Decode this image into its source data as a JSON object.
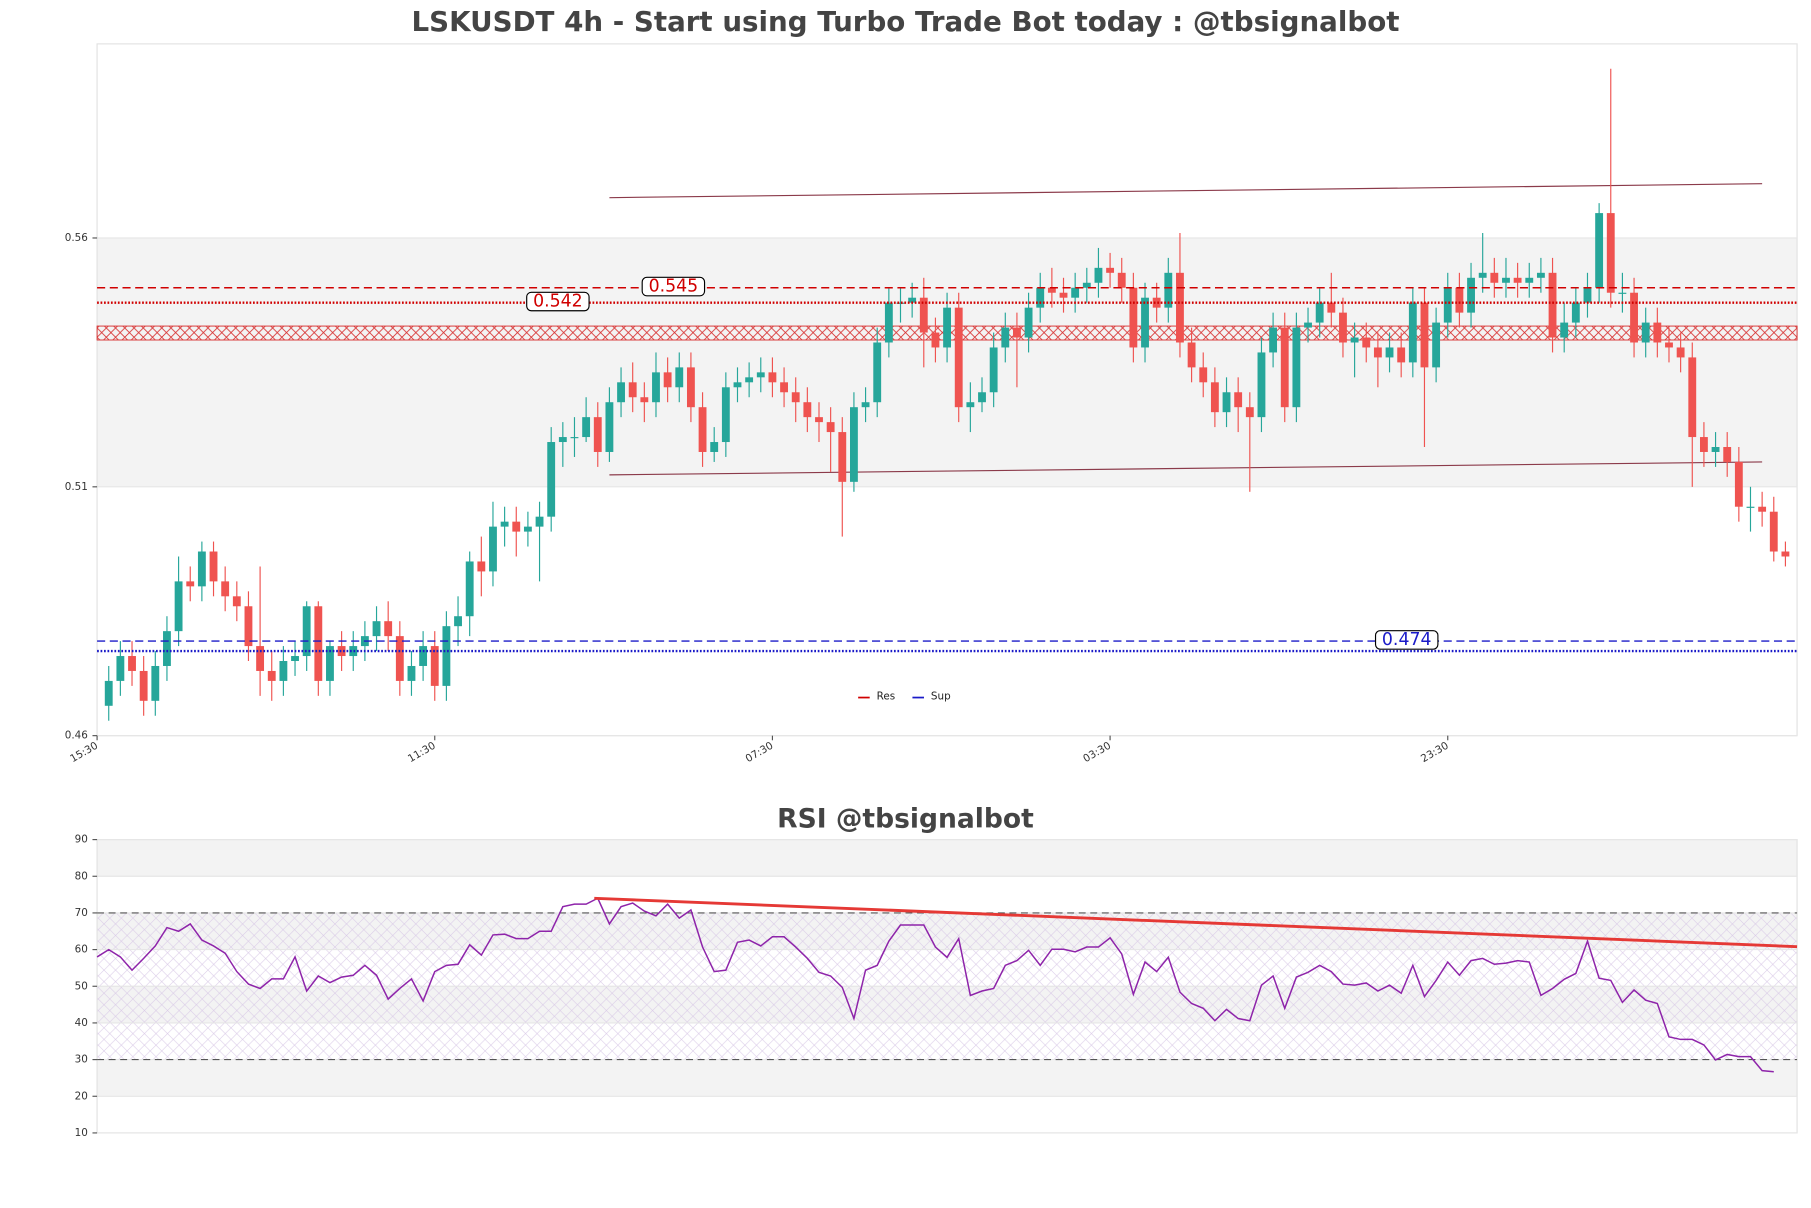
{
  "chart_data": [
    {
      "type": "candlestick",
      "title": "LSKUSDT 4h - Start using Turbo Trade Bot today : @tbsignalbot",
      "up_color": "#26a69a",
      "down_color": "#ef5350",
      "open": [
        0.461,
        0.466,
        0.471,
        0.468,
        0.462,
        0.469,
        0.476,
        0.486,
        0.485,
        0.492,
        0.486,
        0.483,
        0.481,
        0.473,
        0.468,
        0.466,
        0.47,
        0.471,
        0.481,
        0.466,
        0.473,
        0.471,
        0.473,
        0.475,
        0.478,
        0.475,
        0.466,
        0.469,
        0.473,
        0.465,
        0.477,
        0.479,
        0.49,
        0.488,
        0.497,
        0.498,
        0.496,
        0.497,
        0.499,
        0.514,
        0.515,
        0.515,
        0.519,
        0.512,
        0.522,
        0.526,
        0.523,
        0.522,
        0.528,
        0.525,
        0.529,
        0.521,
        0.512,
        0.514,
        0.525,
        0.526,
        0.527,
        0.528,
        0.526,
        0.524,
        0.522,
        0.519,
        0.518,
        0.516,
        0.506,
        0.521,
        0.522,
        0.534,
        0.542,
        0.542,
        0.543,
        0.536,
        0.533,
        0.541,
        0.521,
        0.522,
        0.524,
        0.533,
        0.537,
        0.535,
        0.541,
        0.545,
        0.544,
        0.543,
        0.545,
        0.546,
        0.549,
        0.548,
        0.545,
        0.533,
        0.543,
        0.541,
        0.548,
        0.534,
        0.529,
        0.526,
        0.52,
        0.524,
        0.521,
        0.519,
        0.532,
        0.537,
        0.521,
        0.537,
        0.538,
        0.542,
        0.54,
        0.534,
        0.535,
        0.533,
        0.531,
        0.533,
        0.53,
        0.542,
        0.529,
        0.538,
        0.545,
        0.54,
        0.547,
        0.548,
        0.546,
        0.547,
        0.546,
        0.547,
        0.548,
        0.535,
        0.538,
        0.542,
        0.545,
        0.56,
        0.544,
        0.544,
        0.534,
        0.538,
        0.534,
        0.533,
        0.531,
        0.515,
        0.512,
        0.513,
        0.51,
        0.501,
        0.501,
        0.5,
        0.492
      ],
      "high": [
        0.469,
        0.474,
        0.474,
        0.471,
        0.472,
        0.479,
        0.491,
        0.489,
        0.494,
        0.494,
        0.489,
        0.486,
        0.484,
        0.489,
        0.472,
        0.473,
        0.474,
        0.482,
        0.482,
        0.474,
        0.476,
        0.476,
        0.478,
        0.481,
        0.482,
        0.478,
        0.472,
        0.476,
        0.476,
        0.48,
        0.483,
        0.492,
        0.495,
        0.502,
        0.501,
        0.501,
        0.5,
        0.502,
        0.517,
        0.518,
        0.519,
        0.523,
        0.522,
        0.525,
        0.529,
        0.53,
        0.526,
        0.532,
        0.531,
        0.532,
        0.532,
        0.524,
        0.517,
        0.528,
        0.529,
        0.53,
        0.531,
        0.531,
        0.529,
        0.527,
        0.525,
        0.522,
        0.521,
        0.519,
        0.524,
        0.525,
        0.537,
        0.545,
        0.545,
        0.546,
        0.547,
        0.539,
        0.544,
        0.544,
        0.526,
        0.527,
        0.536,
        0.54,
        0.54,
        0.544,
        0.548,
        0.549,
        0.547,
        0.548,
        0.549,
        0.553,
        0.552,
        0.551,
        0.548,
        0.546,
        0.546,
        0.551,
        0.556,
        0.537,
        0.532,
        0.529,
        0.527,
        0.527,
        0.524,
        0.535,
        0.54,
        0.54,
        0.54,
        0.541,
        0.545,
        0.548,
        0.543,
        0.538,
        0.538,
        0.536,
        0.536,
        0.536,
        0.545,
        0.545,
        0.541,
        0.548,
        0.548,
        0.55,
        0.556,
        0.551,
        0.551,
        0.55,
        0.55,
        0.551,
        0.551,
        0.542,
        0.545,
        0.548,
        0.562,
        0.589,
        0.548,
        0.547,
        0.541,
        0.541,
        0.537,
        0.536,
        0.534,
        0.518,
        0.516,
        0.516,
        0.513,
        0.505,
        0.504,
        0.503,
        0.494
      ],
      "low": [
        0.458,
        0.463,
        0.465,
        0.459,
        0.459,
        0.466,
        0.473,
        0.482,
        0.482,
        0.483,
        0.48,
        0.478,
        0.47,
        0.463,
        0.462,
        0.463,
        0.467,
        0.468,
        0.463,
        0.463,
        0.468,
        0.468,
        0.47,
        0.472,
        0.472,
        0.463,
        0.463,
        0.466,
        0.462,
        0.462,
        0.473,
        0.475,
        0.483,
        0.485,
        0.493,
        0.491,
        0.493,
        0.486,
        0.496,
        0.509,
        0.511,
        0.514,
        0.509,
        0.51,
        0.519,
        0.52,
        0.518,
        0.519,
        0.522,
        0.522,
        0.518,
        0.509,
        0.51,
        0.511,
        0.522,
        0.523,
        0.524,
        0.523,
        0.521,
        0.518,
        0.516,
        0.514,
        0.508,
        0.495,
        0.504,
        0.518,
        0.519,
        0.531,
        0.538,
        0.539,
        0.529,
        0.53,
        0.53,
        0.518,
        0.516,
        0.52,
        0.521,
        0.53,
        0.525,
        0.532,
        0.538,
        0.541,
        0.54,
        0.54,
        0.542,
        0.543,
        0.545,
        0.542,
        0.53,
        0.53,
        0.538,
        0.538,
        0.531,
        0.526,
        0.523,
        0.517,
        0.517,
        0.516,
        0.504,
        0.516,
        0.529,
        0.518,
        0.518,
        0.534,
        0.535,
        0.537,
        0.531,
        0.527,
        0.53,
        0.525,
        0.528,
        0.527,
        0.527,
        0.513,
        0.526,
        0.535,
        0.537,
        0.537,
        0.544,
        0.543,
        0.543,
        0.543,
        0.543,
        0.544,
        0.532,
        0.532,
        0.535,
        0.539,
        0.542,
        0.541,
        0.54,
        0.531,
        0.531,
        0.531,
        0.53,
        0.528,
        0.505,
        0.509,
        0.509,
        0.507,
        0.498,
        0.496,
        0.497,
        0.49,
        0.489
      ],
      "close": [
        0.466,
        0.471,
        0.468,
        0.462,
        0.469,
        0.476,
        0.486,
        0.485,
        0.492,
        0.486,
        0.483,
        0.481,
        0.473,
        0.468,
        0.466,
        0.47,
        0.471,
        0.481,
        0.466,
        0.473,
        0.471,
        0.473,
        0.475,
        0.478,
        0.475,
        0.466,
        0.469,
        0.473,
        0.465,
        0.477,
        0.479,
        0.49,
        0.488,
        0.497,
        0.498,
        0.496,
        0.497,
        0.499,
        0.514,
        0.515,
        0.515,
        0.519,
        0.512,
        0.522,
        0.526,
        0.523,
        0.522,
        0.528,
        0.525,
        0.529,
        0.521,
        0.512,
        0.514,
        0.525,
        0.526,
        0.527,
        0.528,
        0.526,
        0.524,
        0.522,
        0.519,
        0.518,
        0.516,
        0.506,
        0.521,
        0.522,
        0.534,
        0.542,
        0.542,
        0.543,
        0.536,
        0.533,
        0.541,
        0.521,
        0.522,
        0.524,
        0.533,
        0.537,
        0.535,
        0.541,
        0.545,
        0.544,
        0.543,
        0.545,
        0.546,
        0.549,
        0.548,
        0.545,
        0.533,
        0.543,
        0.541,
        0.548,
        0.534,
        0.529,
        0.526,
        0.52,
        0.524,
        0.521,
        0.519,
        0.532,
        0.537,
        0.521,
        0.537,
        0.538,
        0.542,
        0.54,
        0.534,
        0.535,
        0.533,
        0.531,
        0.533,
        0.53,
        0.542,
        0.529,
        0.538,
        0.545,
        0.54,
        0.547,
        0.548,
        0.546,
        0.547,
        0.546,
        0.547,
        0.548,
        0.535,
        0.538,
        0.542,
        0.545,
        0.56,
        0.544,
        0.544,
        0.534,
        0.538,
        0.534,
        0.533,
        0.531,
        0.515,
        0.512,
        0.513,
        0.51,
        0.501,
        0.501,
        0.5,
        0.492,
        0.491
      ],
      "xlim": [
        0,
        146
      ],
      "xticks": [
        {
          "value": 0,
          "label": "15:30"
        },
        {
          "value": 29,
          "label": "11:30"
        },
        {
          "value": 58,
          "label": "07:30"
        },
        {
          "value": 87,
          "label": "03:30"
        },
        {
          "value": 116,
          "label": "23:30"
        }
      ],
      "ylim": [
        0.455,
        0.594
      ],
      "yticks": [
        {
          "value": 0.455,
          "label": "0.46"
        },
        {
          "value": 0.505,
          "label": "0.51"
        },
        {
          "value": 0.555,
          "label": "0.56"
        }
      ],
      "resistance": {
        "name": "Res",
        "color": "#d00000",
        "values": [
          0.545,
          0.542
        ],
        "value_labels": [
          "0.545",
          "0.542"
        ]
      },
      "support": {
        "name": "Sup",
        "color": "#1a1ac8",
        "values": [
          0.474,
          0.472
        ],
        "value_labels": [
          "0.474",
          null
        ]
      },
      "zone": {
        "color": "#d00000",
        "values": [
          0.5345,
          0.5373
        ]
      },
      "channel": {
        "color": "#8b3a4a",
        "lines": [
          {
            "x": [
              44,
              143
            ],
            "values": [
              0.5631,
              0.5659
            ]
          },
          {
            "x": [
              44,
              143
            ],
            "values": [
              0.5074,
              0.51
            ]
          }
        ]
      }
    },
    {
      "type": "line",
      "title": "RSI @tbsignalbot",
      "color": "#8e24aa",
      "values": [
        58,
        60,
        58,
        54.4,
        57.6,
        61,
        66,
        65,
        67,
        62.6,
        61,
        59,
        54,
        50.6,
        49.4,
        52,
        52,
        58,
        48.7,
        52.8,
        51,
        52.5,
        53,
        55.7,
        53,
        46.5,
        49.4,
        52,
        46,
        54,
        55.7,
        56,
        61.3,
        58.5,
        64,
        64.2,
        63,
        63,
        65,
        65,
        71.7,
        72.4,
        72.4,
        74,
        67,
        71.7,
        72.7,
        70.5,
        69.2,
        72.4,
        68.6,
        70.8,
        60.7,
        54,
        54.4,
        62,
        62.6,
        61,
        63.5,
        63.5,
        60.7,
        57.6,
        53.8,
        52.8,
        49.7,
        41.2,
        54.4,
        55.7,
        62.3,
        66.7,
        66.7,
        66.7,
        60.7,
        57.9,
        63,
        47.5,
        48.7,
        49.4,
        55.7,
        57,
        59.8,
        55.7,
        60.1,
        60.1,
        59.4,
        60.7,
        60.7,
        63.2,
        58.8,
        47.8,
        56.6,
        54,
        57.9,
        48.4,
        45.3,
        44,
        40.6,
        43.7,
        41.2,
        40.6,
        50.3,
        52.8,
        44,
        52.5,
        53.8,
        55.7,
        54,
        50.6,
        50.3,
        50.9,
        48.7,
        50.3,
        48.1,
        55.7,
        47.2,
        51.6,
        56.6,
        53,
        57,
        57.6,
        56,
        56.3,
        57,
        56.6,
        47.5,
        49.4,
        51.9,
        53.5,
        62.3,
        52.2,
        51.6,
        45.6,
        49,
        46.2,
        45.3,
        36.2,
        35.5,
        35.5,
        34,
        29.9,
        31.4,
        30.8,
        30.8,
        27,
        26.7
      ],
      "xlim": [
        0,
        146
      ],
      "ylim": [
        10,
        90
      ],
      "yticks": [
        10,
        20,
        30,
        40,
        50,
        60,
        70,
        80,
        90
      ],
      "hlines": [
        70,
        30
      ],
      "trend": {
        "color": "#e53935",
        "x": [
          42.7,
          146
        ],
        "values": [
          74,
          60.8
        ]
      }
    }
  ]
}
